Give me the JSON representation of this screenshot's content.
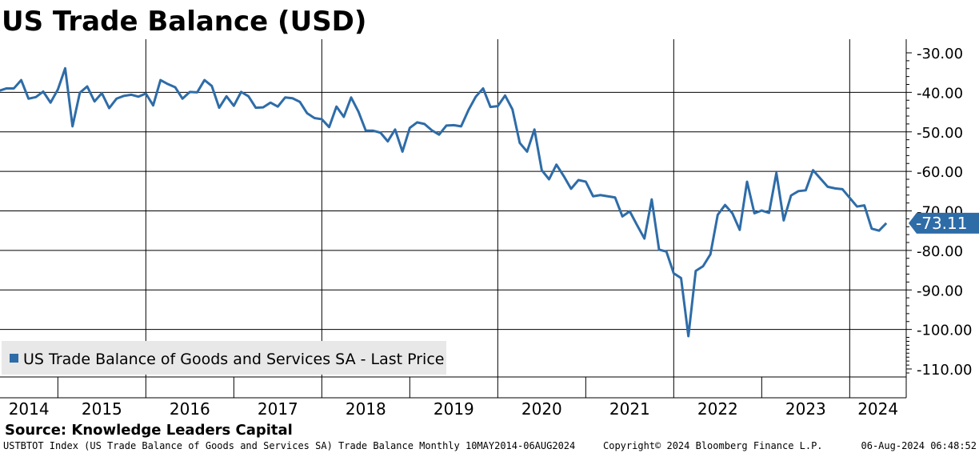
{
  "chart_data": {
    "type": "line",
    "title": "US Trade Balance (USD)",
    "xlabel": "",
    "ylabel": "",
    "ylim": [
      -110,
      -30
    ],
    "y_ticks": [
      "-30.00",
      "-40.00",
      "-50.00",
      "-60.00",
      "-70.00",
      "-80.00",
      "-90.00",
      "-100.00",
      "-110.00"
    ],
    "year_labels": [
      "2014",
      "2015",
      "2016",
      "2017",
      "2018",
      "2019",
      "2020",
      "2021",
      "2022",
      "2023",
      "2024"
    ],
    "x_start": "2014-05",
    "x_end": "2024-08",
    "grid": true,
    "legend_position": "bottom-left",
    "series": [
      {
        "name": "US Trade Balance of Goods and Services SA - Last Price",
        "color": "#2e6ca8",
        "x": [
          "2014-05",
          "2014-06",
          "2014-07",
          "2014-08",
          "2014-09",
          "2014-10",
          "2014-11",
          "2014-12",
          "2015-01",
          "2015-02",
          "2015-03",
          "2015-04",
          "2015-05",
          "2015-06",
          "2015-07",
          "2015-08",
          "2015-09",
          "2015-10",
          "2015-11",
          "2015-12",
          "2016-01",
          "2016-02",
          "2016-03",
          "2016-04",
          "2016-05",
          "2016-06",
          "2016-07",
          "2016-08",
          "2016-09",
          "2016-10",
          "2016-11",
          "2016-12",
          "2017-01",
          "2017-02",
          "2017-03",
          "2017-04",
          "2017-05",
          "2017-06",
          "2017-07",
          "2017-08",
          "2017-09",
          "2017-10",
          "2017-11",
          "2017-12",
          "2018-01",
          "2018-02",
          "2018-03",
          "2018-04",
          "2018-05",
          "2018-06",
          "2018-07",
          "2018-08",
          "2018-09",
          "2018-10",
          "2018-11",
          "2018-12",
          "2019-01",
          "2019-02",
          "2019-03",
          "2019-04",
          "2019-05",
          "2019-06",
          "2019-07",
          "2019-08",
          "2019-09",
          "2019-10",
          "2019-11",
          "2019-12",
          "2020-01",
          "2020-02",
          "2020-03",
          "2020-04",
          "2020-05",
          "2020-06",
          "2020-07",
          "2020-08",
          "2020-09",
          "2020-10",
          "2020-11",
          "2020-12",
          "2021-01",
          "2021-02",
          "2021-03",
          "2021-04",
          "2021-05",
          "2021-06",
          "2021-07",
          "2021-08",
          "2021-09",
          "2021-10",
          "2021-11",
          "2021-12",
          "2022-01",
          "2022-02",
          "2022-03",
          "2022-04",
          "2022-05",
          "2022-06",
          "2022-07",
          "2022-08",
          "2022-09",
          "2022-10",
          "2022-11",
          "2022-12",
          "2023-01",
          "2023-02",
          "2023-03",
          "2023-04",
          "2023-05",
          "2023-06",
          "2023-07",
          "2023-08",
          "2023-09",
          "2023-10",
          "2023-11",
          "2023-12",
          "2024-01",
          "2024-02",
          "2024-03",
          "2024-04",
          "2024-05",
          "2024-06"
        ],
        "values": [
          -39.6,
          -39.0,
          -39.0,
          -36.9,
          -41.6,
          -41.2,
          -39.8,
          -42.6,
          -39.3,
          -33.9,
          -48.6,
          -40.1,
          -38.5,
          -42.3,
          -40.2,
          -44.0,
          -41.6,
          -40.9,
          -40.6,
          -41.1,
          -40.3,
          -43.3,
          -36.9,
          -37.9,
          -38.7,
          -41.6,
          -39.9,
          -40.0,
          -36.9,
          -38.4,
          -43.9,
          -41.0,
          -43.4,
          -39.9,
          -41.0,
          -43.9,
          -43.8,
          -42.6,
          -43.6,
          -41.3,
          -41.5,
          -42.4,
          -45.3,
          -46.5,
          -46.8,
          -48.8,
          -43.6,
          -46.2,
          -41.3,
          -44.9,
          -49.7,
          -49.7,
          -50.2,
          -52.4,
          -49.4,
          -55.0,
          -49.0,
          -47.6,
          -48.0,
          -49.6,
          -50.7,
          -48.4,
          -48.3,
          -48.6,
          -44.5,
          -41.1,
          -39.0,
          -43.7,
          -43.5,
          -40.8,
          -44.3,
          -52.8,
          -55.0,
          -49.4,
          -59.7,
          -62.0,
          -58.3,
          -61.2,
          -64.4,
          -62.2,
          -62.6,
          -66.3,
          -66.0,
          -66.3,
          -66.6,
          -71.4,
          -70.1,
          -73.6,
          -77.0,
          -67.1,
          -79.8,
          -80.3,
          -85.8,
          -87.0,
          -101.7,
          -85.2,
          -84.0,
          -81.0,
          -71.0,
          -68.5,
          -70.6,
          -74.8,
          -62.6,
          -70.6,
          -69.9,
          -70.5,
          -60.4,
          -72.4,
          -66.1,
          -65.0,
          -64.8,
          -59.7,
          -61.8,
          -63.9,
          -64.3,
          -64.5,
          -66.7,
          -68.9,
          -68.6,
          -74.5,
          -75.0,
          -73.11
        ],
        "last_label": "-73.11"
      }
    ]
  },
  "source_label": "Source: Knowledge Leaders Capital",
  "footer": {
    "index_text": "USTBTOT Index (US Trade Balance of Goods and Services SA) Trade Balance  Monthly 10MAY2014-06AUG2024",
    "copyright": "Copyright© 2024 Bloomberg Finance L.P.",
    "timestamp": "06-Aug-2024 06:48:52"
  }
}
